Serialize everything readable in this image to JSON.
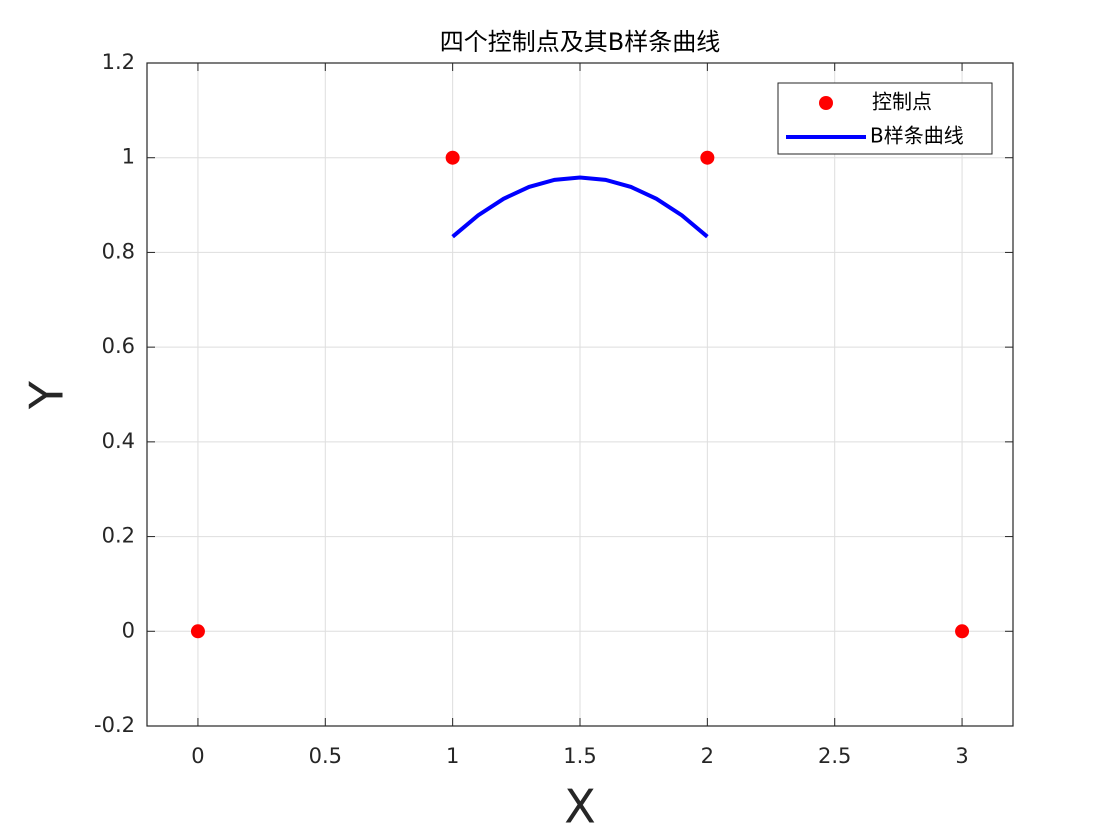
{
  "chart_data": {
    "type": "line",
    "title": "四个控制点及其B样条曲线",
    "xlabel": "X",
    "ylabel": "Y",
    "series": [
      {
        "name": "控制点",
        "color": "#ff0000",
        "marker": "circle",
        "line": false,
        "x": [
          0,
          1,
          2,
          3
        ],
        "values": [
          0,
          1,
          1,
          0
        ]
      },
      {
        "name": "B样条曲线",
        "color": "#0000ff",
        "marker": "none",
        "line": true,
        "x": [
          1,
          1.1,
          1.2,
          1.3,
          1.4,
          1.5,
          1.6,
          1.7,
          1.8,
          1.9,
          2
        ],
        "values": [
          0.8333,
          0.8783,
          0.9133,
          0.9383,
          0.9533,
          0.9583,
          0.9533,
          0.9383,
          0.9133,
          0.8783,
          0.8333
        ]
      }
    ],
    "xlim": [
      -0.2,
      3.2
    ],
    "ylim": [
      -0.2,
      1.2
    ],
    "xticks": [
      0,
      0.5,
      1,
      1.5,
      2,
      2.5,
      3
    ],
    "yticks": [
      -0.2,
      0,
      0.2,
      0.4,
      0.6,
      0.8,
      1,
      1.2
    ],
    "grid": true,
    "legend": "top-right"
  }
}
